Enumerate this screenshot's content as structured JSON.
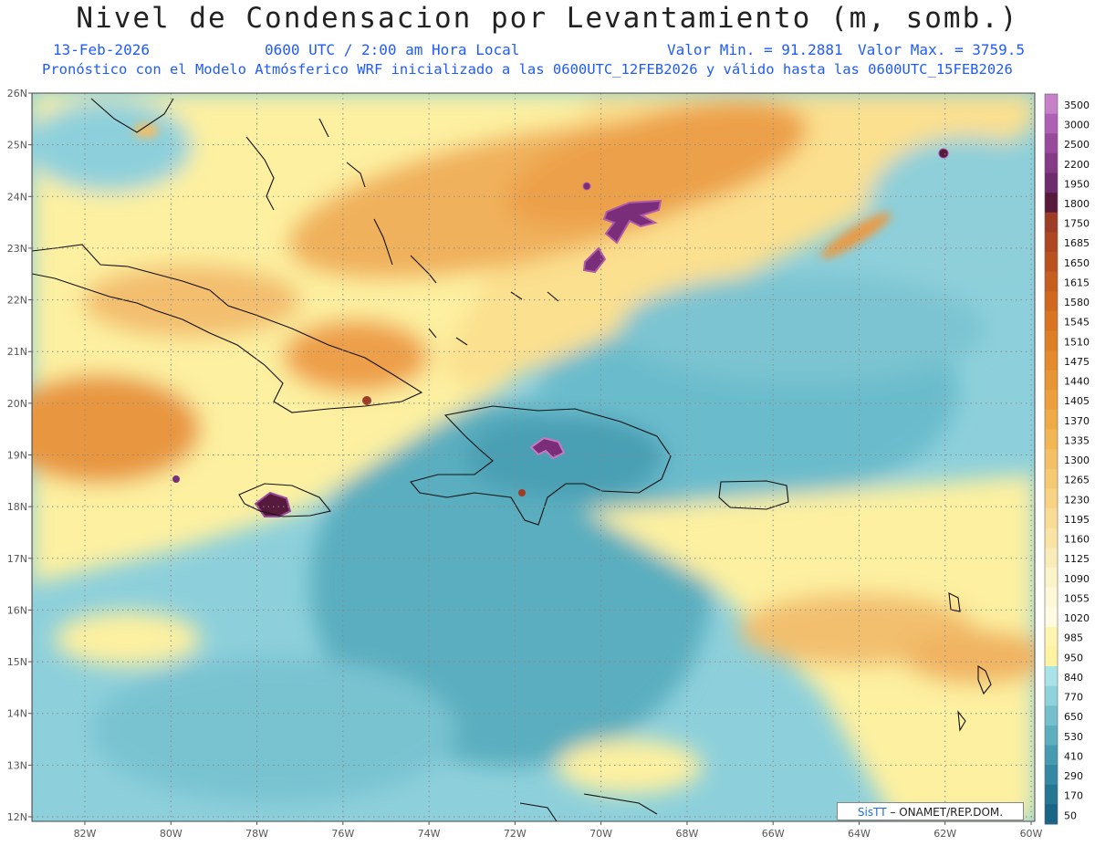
{
  "title": "Nivel de Condensacion por Levantamiento (m, somb.)",
  "date": "13-Feb-2026",
  "time": "0600 UTC / 2:00 am Hora Local",
  "min_label": "Valor Min. = 91.2881",
  "max_label": "Valor Max. = 3759.5",
  "subtitle": "Pronóstico con el Modelo Atmósferico WRF inicializado a las 0600UTC_12FEB2026 y válido hasta las  0600UTC_15FEB2026",
  "lat_labels": [
    "26N",
    "25N",
    "24N",
    "23N",
    "22N",
    "21N",
    "20N",
    "19N",
    "18N",
    "17N",
    "16N",
    "15N",
    "14N",
    "13N",
    "12N"
  ],
  "lon_labels": [
    "82W",
    "80W",
    "78W",
    "76W",
    "74W",
    "72W",
    "70W",
    "68W",
    "66W",
    "64W",
    "62W",
    "60W"
  ],
  "legend": {
    "levels": [
      "3500",
      "3000",
      "2500",
      "2200",
      "1950",
      "1800",
      "1750",
      "1685",
      "1650",
      "1615",
      "1580",
      "1545",
      "1510",
      "1475",
      "1440",
      "1405",
      "1370",
      "1335",
      "1300",
      "1265",
      "1230",
      "1195",
      "1160",
      "1125",
      "1090",
      "1055",
      "1020",
      "985",
      "950",
      "840",
      "770",
      "650",
      "530",
      "410",
      "290",
      "170",
      "50"
    ],
    "colors": [
      "#c680c8",
      "#b060b4",
      "#9a4a9c",
      "#853a87",
      "#6e2c6f",
      "#581a3c",
      "#9e3d26",
      "#ad4721",
      "#ba521f",
      "#c65e1e",
      "#d0691f",
      "#d87422",
      "#de7f26",
      "#e38a2c",
      "#e89533",
      "#eca03c",
      "#efab48",
      "#f2b655",
      "#f4c063",
      "#f6ca72",
      "#f7d383",
      "#f8dc94",
      "#f9e4a6",
      "#faecb8",
      "#fbf3c9",
      "#fcf8d8",
      "#fffbe3",
      "#fff5b0",
      "#fff2a0",
      "#a8e3e8",
      "#8fd2dc",
      "#76c0cd",
      "#5daebf",
      "#469bb0",
      "#3388a2",
      "#247693",
      "#196585"
    ]
  },
  "credit": {
    "logo": "SisTT",
    "text": "– ONAMET/REP.DOM."
  },
  "colors": {
    "ocean_low": "#7fc8d6",
    "yellow": "#fdf3a6",
    "orange": "#e99a45",
    "purple": "#7a2e7a"
  }
}
